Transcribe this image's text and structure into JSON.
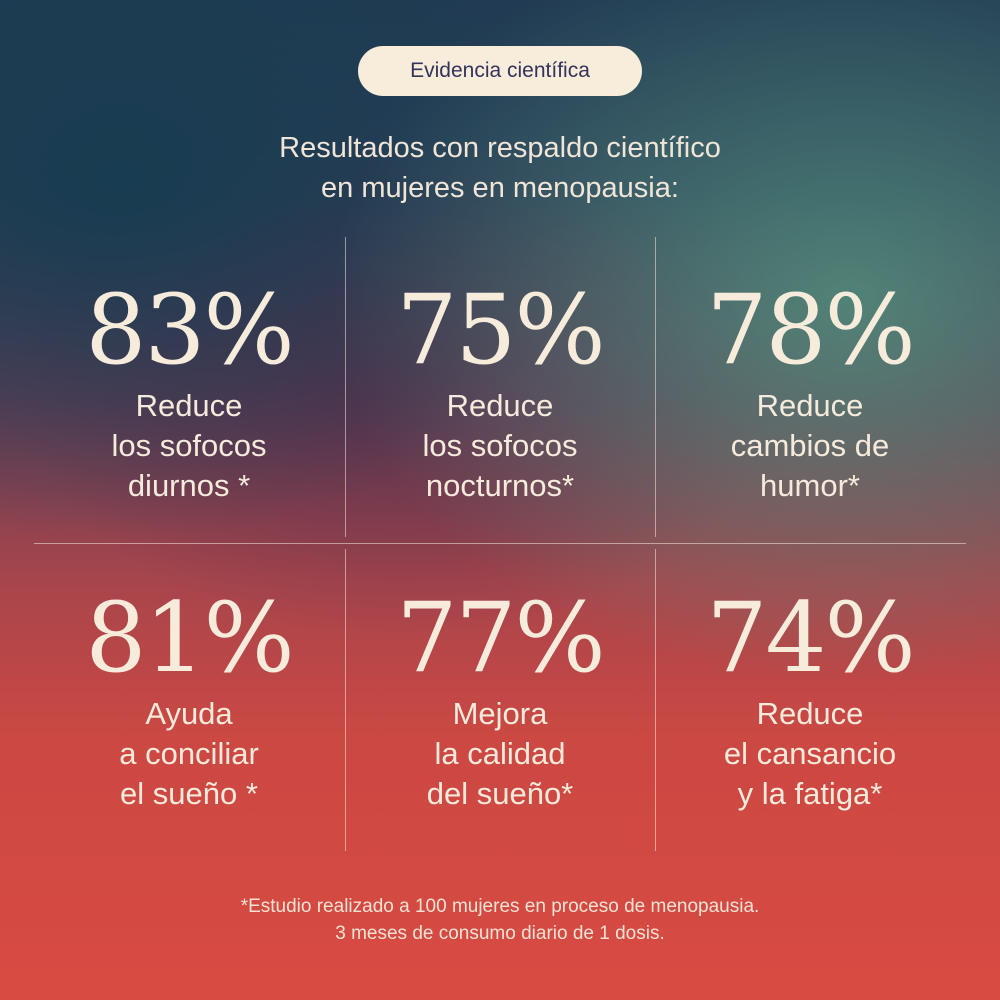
{
  "badge": {
    "label": "Evidencia científica"
  },
  "heading": {
    "line1": "Resultados con respaldo científico",
    "line2": "en mujeres en menopausia:"
  },
  "stats": [
    {
      "value": "83%",
      "lines": [
        "Reduce",
        "los sofocos",
        "diurnos *"
      ]
    },
    {
      "value": "75%",
      "lines": [
        "Reduce",
        "los sofocos",
        "nocturnos*"
      ]
    },
    {
      "value": "78%",
      "lines": [
        "Reduce",
        "cambios de",
        "humor*"
      ]
    },
    {
      "value": "81%",
      "lines": [
        "Ayuda",
        "a conciliar",
        "el sueño *"
      ]
    },
    {
      "value": "77%",
      "lines": [
        "Mejora",
        "la calidad",
        "del sueño*"
      ]
    },
    {
      "value": "74%",
      "lines": [
        "Reduce",
        "el cansancio",
        "y la fatiga*"
      ]
    }
  ],
  "footnote": {
    "line1": "*Estudio realizado a 100 mujeres en proceso de menopausia.",
    "line2": "3 meses de consumo diario de 1 dosis."
  },
  "colors": {
    "text": "#f5eadb",
    "badge_bg": "#f8ecdb",
    "badge_text": "#34335c",
    "top_background": "#213b53",
    "bottom_background": "#d84b43"
  }
}
